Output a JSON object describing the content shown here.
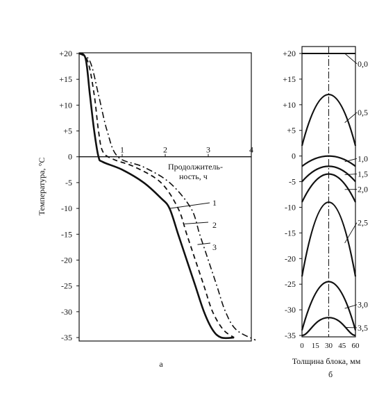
{
  "chart_data": [
    {
      "panel": "a",
      "type": "line",
      "ylabel": "Температура, °C",
      "xlabel": [
        "Продолжитель-",
        "ность, ч"
      ],
      "caption": "а",
      "xlim": [
        0,
        4
      ],
      "ylim": [
        -35,
        20
      ],
      "xticks": [
        "1",
        "2",
        "3",
        "4"
      ],
      "yticks": [
        "+20",
        "+15",
        "+10",
        "+5",
        "0",
        "-5",
        "-10",
        "-15",
        "-20",
        "-25",
        "-30",
        "-35"
      ],
      "yticks_values": [
        20,
        15,
        10,
        5,
        0,
        -5,
        -10,
        -15,
        -20,
        -25,
        -30,
        -35
      ],
      "xticks_values": [
        1,
        2,
        3,
        4
      ],
      "grid": false,
      "series": [
        {
          "name": "1",
          "style": "solid",
          "points": [
            [
              0.0,
              20
            ],
            [
              0.15,
              19
            ],
            [
              0.25,
              12
            ],
            [
              0.35,
              5
            ],
            [
              0.45,
              0
            ],
            [
              0.55,
              -1
            ],
            [
              1.0,
              -2.5
            ],
            [
              1.5,
              -5
            ],
            [
              1.9,
              -8
            ],
            [
              2.1,
              -10
            ],
            [
              2.3,
              -15
            ],
            [
              2.5,
              -20
            ],
            [
              2.7,
              -25
            ],
            [
              2.9,
              -30
            ],
            [
              3.1,
              -33.5
            ],
            [
              3.3,
              -35
            ],
            [
              3.6,
              -35
            ]
          ]
        },
        {
          "name": "2",
          "style": "dashed",
          "points": [
            [
              0.0,
              20
            ],
            [
              0.2,
              18.5
            ],
            [
              0.35,
              12
            ],
            [
              0.45,
              5
            ],
            [
              0.55,
              1
            ],
            [
              0.8,
              -0.5
            ],
            [
              1.3,
              -2
            ],
            [
              1.9,
              -5
            ],
            [
              2.3,
              -10
            ],
            [
              2.5,
              -15
            ],
            [
              2.7,
              -20
            ],
            [
              2.9,
              -25
            ],
            [
              3.1,
              -30
            ],
            [
              3.35,
              -33.5
            ],
            [
              3.6,
              -35
            ]
          ]
        },
        {
          "name": "3",
          "style": "dash-dot",
          "points": [
            [
              0.0,
              20
            ],
            [
              0.25,
              18.5
            ],
            [
              0.45,
              12
            ],
            [
              0.65,
              5
            ],
            [
              0.9,
              0
            ],
            [
              1.5,
              -2
            ],
            [
              2.1,
              -5
            ],
            [
              2.6,
              -10
            ],
            [
              2.8,
              -15
            ],
            [
              3.0,
              -20
            ],
            [
              3.2,
              -25
            ],
            [
              3.4,
              -30
            ],
            [
              3.65,
              -33.5
            ],
            [
              4.1,
              -35.5
            ]
          ]
        }
      ]
    },
    {
      "panel": "б",
      "type": "line",
      "xlabel": "Толщина блока, мм",
      "caption": "б",
      "xlim": [
        0,
        60
      ],
      "ylim": [
        -35,
        20
      ],
      "xticks": [
        "0",
        "15",
        "30",
        "45",
        "60"
      ],
      "xticks_values": [
        0,
        15,
        30,
        45,
        60
      ],
      "yticks": [
        "+20",
        "+15",
        "+10",
        "+5",
        "0",
        "-5",
        "-10",
        "-15",
        "-20",
        "-25",
        "-30",
        "-35"
      ],
      "yticks_values": [
        20,
        15,
        10,
        5,
        0,
        -5,
        -10,
        -15,
        -20,
        -25,
        -30,
        -35
      ],
      "grid": false,
      "centerline": 30,
      "series": [
        {
          "name": "0,0",
          "edge": 20,
          "center": 20,
          "label_y": 18
        },
        {
          "name": "0,5",
          "edge": 2,
          "center": 12,
          "label_y": 8.5
        },
        {
          "name": "1,0",
          "edge": -2,
          "center": 0,
          "label_y": -0.5
        },
        {
          "name": "1,5",
          "edge": -5,
          "center": -2,
          "label_y": -3.5
        },
        {
          "name": "2,0",
          "edge": -9,
          "center": -3.5,
          "label_y": -6.5
        },
        {
          "name": "2,5",
          "edge": -23.5,
          "center": -9,
          "label_y": -13
        },
        {
          "name": "3,0",
          "edge": -34,
          "center": -24.5,
          "label_y": -29
        },
        {
          "name": "3,5",
          "edge": -35,
          "center": -31.5,
          "label_y": -33.5
        }
      ]
    }
  ]
}
